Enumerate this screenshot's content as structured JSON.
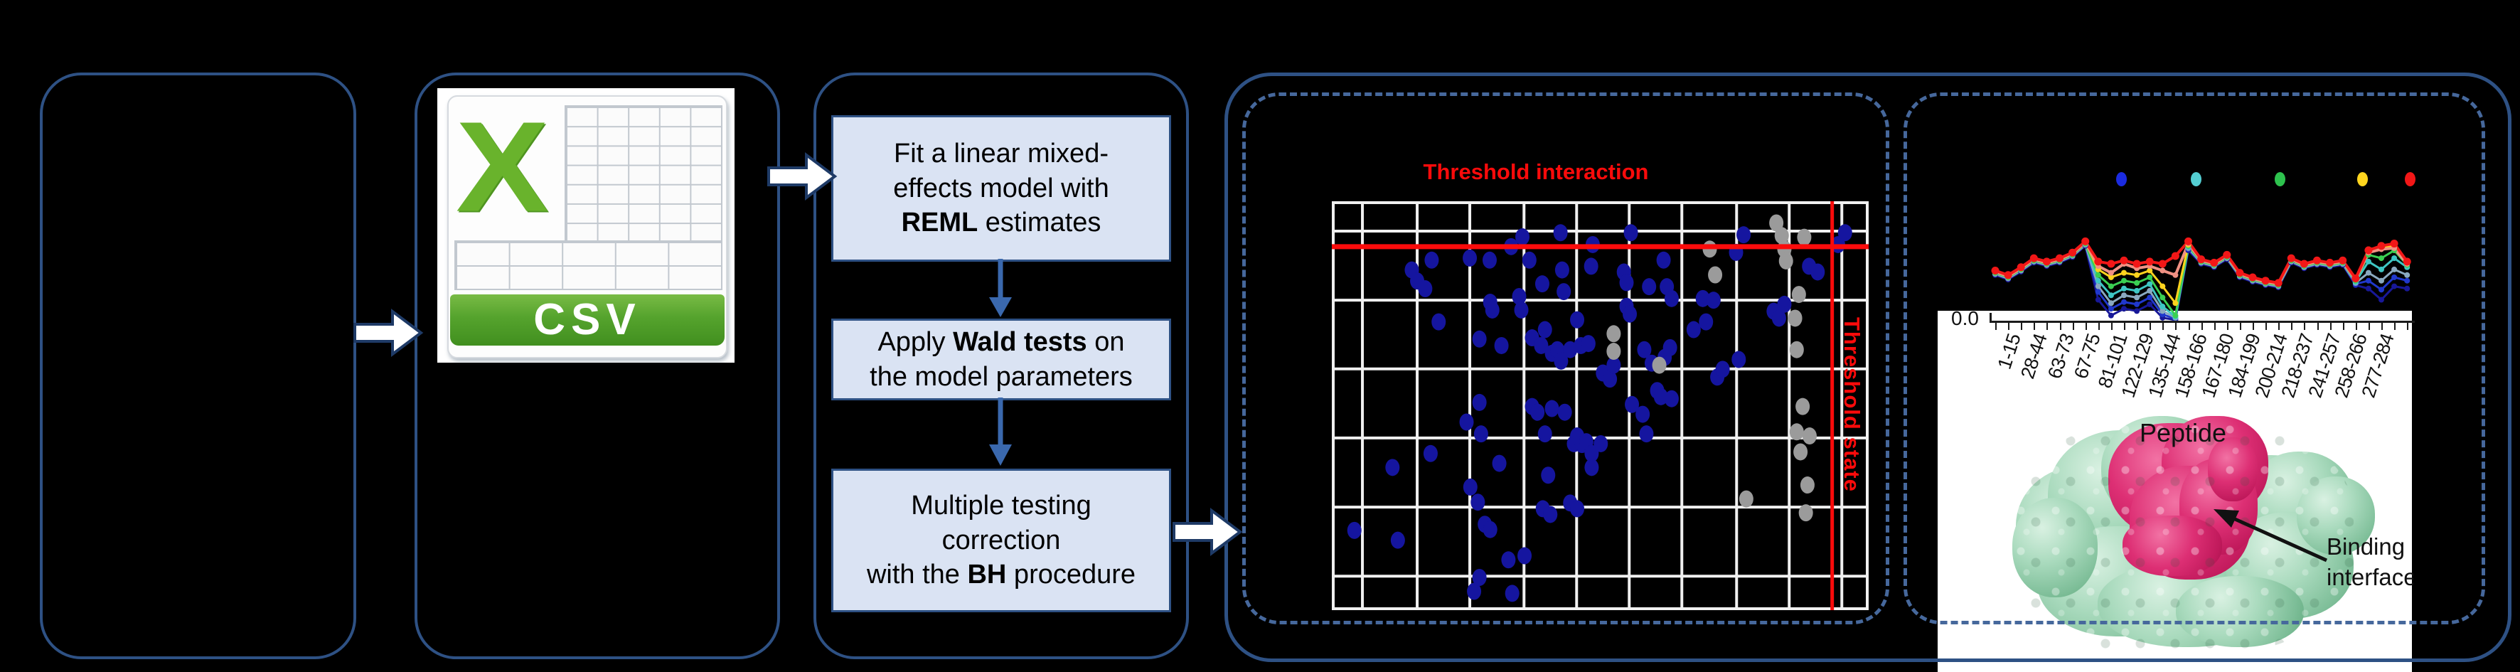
{
  "colors": {
    "background": "#000000",
    "panel_border": "#2e5184",
    "dashed_border": "#46689c",
    "flow_box_fill": "#dae3f3",
    "flow_arrow_blue": "#3a68ad",
    "threshold_red": "#fb0b0b",
    "scatter_blue": "#15159f",
    "scatter_gray": "#9b9b9b",
    "gridline_white": "#f0f0f0",
    "csv_green": "#55a32d"
  },
  "flow": {
    "boxes": [
      {
        "segments": [
          [
            "Fit a linear mixed-\neffects model with\n",
            false
          ],
          [
            "REML",
            true
          ],
          [
            " estimates",
            false
          ]
        ]
      },
      {
        "segments": [
          [
            "Apply ",
            false
          ],
          [
            "Wald tests",
            true
          ],
          [
            " on\nthe model parameters",
            false
          ]
        ]
      },
      {
        "segments": [
          [
            "Multiple testing\ncorrection\nwith the ",
            false
          ],
          [
            "BH",
            true
          ],
          [
            " procedure",
            false
          ]
        ]
      }
    ]
  },
  "csv_icon": {
    "x": "X",
    "banner": "CSV"
  },
  "protein": {
    "annotation": "Binding\ninterface"
  },
  "chart_data": [
    {
      "type": "scatter",
      "title": "Threshold interaction",
      "threshold_state_label": "Threshold state",
      "xlabel": "",
      "ylabel": "",
      "grid_on": true,
      "v_gridlines_pct": [
        5.7,
        15.9,
        25.7,
        35.8,
        45.6,
        55.4,
        65.2,
        75.4,
        85.2,
        95.0
      ],
      "h_gridlines_pct": [
        7.3,
        24.2,
        41.0,
        57.9,
        74.8,
        91.7
      ],
      "threshold_interaction_pct_y": 11.1,
      "threshold_state_pct_x": 93.2,
      "series": [
        {
          "name": "peptides-blue",
          "color": "#15159f",
          "points_pct": [
            [
              35.5,
              8.7
            ],
            [
              42.6,
              7.7
            ],
            [
              48.6,
              10.6
            ],
            [
              55.7,
              7.7
            ],
            [
              76.7,
              8.2
            ],
            [
              94.3,
              10.6
            ],
            [
              95.6,
              7.7
            ],
            [
              18.6,
              14.4
            ],
            [
              25.7,
              13.9
            ],
            [
              29.4,
              14.4
            ],
            [
              33.4,
              11.1
            ],
            [
              36.8,
              14.4
            ],
            [
              48.3,
              15.9
            ],
            [
              61.8,
              14.4
            ],
            [
              75.3,
              12.5
            ],
            [
              88.9,
              15.9
            ],
            [
              90.5,
              17.3
            ],
            [
              14.9,
              16.8
            ],
            [
              15.9,
              19.5
            ],
            [
              17.4,
              21.4
            ],
            [
              39.2,
              20.2
            ],
            [
              42.9,
              16.8
            ],
            [
              43.2,
              22.1
            ],
            [
              54.4,
              17.3
            ],
            [
              54.9,
              19.9
            ],
            [
              59.1,
              20.9
            ],
            [
              62.4,
              20.9
            ],
            [
              63.3,
              23.8
            ],
            [
              69.1,
              23.8
            ],
            [
              71.1,
              24.2
            ],
            [
              82.3,
              26.9
            ],
            [
              83.3,
              28.6
            ],
            [
              84.3,
              25.2
            ],
            [
              19.9,
              29.5
            ],
            [
              27.5,
              33.7
            ],
            [
              29.5,
              24.7
            ],
            [
              29.9,
              26.6
            ],
            [
              31.6,
              35.3
            ],
            [
              34.9,
              23.3
            ],
            [
              35.3,
              26.6
            ],
            [
              37.3,
              33.4
            ],
            [
              39.0,
              35.3
            ],
            [
              39.7,
              31.4
            ],
            [
              41.0,
              37.2
            ],
            [
              42.0,
              36.3
            ],
            [
              42.7,
              39.1
            ],
            [
              44.4,
              36.3
            ],
            [
              45.7,
              29.0
            ],
            [
              46.4,
              35.3
            ],
            [
              47.8,
              34.8
            ],
            [
              50.5,
              42.0
            ],
            [
              51.8,
              43.5
            ],
            [
              52.5,
              40.1
            ],
            [
              54.9,
              25.7
            ],
            [
              55.5,
              27.6
            ],
            [
              58.2,
              36.3
            ],
            [
              59.6,
              39.6
            ],
            [
              62.0,
              38.2
            ],
            [
              63.0,
              35.8
            ],
            [
              67.4,
              31.4
            ],
            [
              69.7,
              29.5
            ],
            [
              71.8,
              43.0
            ],
            [
              72.8,
              41.1
            ],
            [
              75.8,
              38.7
            ],
            [
              25.1,
              54.0
            ],
            [
              27.5,
              49.2
            ],
            [
              27.8,
              56.9
            ],
            [
              37.3,
              50.2
            ],
            [
              38.3,
              51.6
            ],
            [
              39.7,
              56.9
            ],
            [
              41.0,
              50.7
            ],
            [
              43.4,
              51.6
            ],
            [
              45.1,
              59.3
            ],
            [
              45.7,
              57.4
            ],
            [
              46.6,
              59.5
            ],
            [
              47.4,
              58.8
            ],
            [
              48.4,
              61.7
            ],
            [
              50.1,
              59.3
            ],
            [
              55.9,
              49.7
            ],
            [
              57.9,
              52.1
            ],
            [
              58.6,
              56.9
            ],
            [
              60.6,
              46.3
            ],
            [
              61.3,
              47.8
            ],
            [
              63.3,
              48.3
            ],
            [
              11.3,
              65.1
            ],
            [
              18.4,
              61.7
            ],
            [
              31.2,
              64.1
            ],
            [
              40.3,
              67.0
            ],
            [
              48.4,
              65.1
            ],
            [
              39.3,
              75.2
            ],
            [
              40.7,
              76.6
            ],
            [
              44.4,
              73.8
            ],
            [
              45.7,
              75.2
            ],
            [
              4.2,
              80.5
            ],
            [
              12.3,
              82.9
            ],
            [
              28.5,
              79.0
            ],
            [
              32.9,
              87.7
            ],
            [
              35.9,
              86.7
            ],
            [
              33.6,
              95.9
            ],
            [
              26.5,
              95.4
            ],
            [
              27.5,
              92.0
            ],
            [
              25.8,
              69.9
            ],
            [
              27.2,
              73.6
            ],
            [
              29.5,
              80.3
            ]
          ]
        },
        {
          "name": "peptides-gray",
          "color": "#9b9b9b",
          "points_pct": [
            [
              82.8,
              5.3
            ],
            [
              83.8,
              8.4
            ],
            [
              84.3,
              11.7
            ],
            [
              88.0,
              8.8
            ],
            [
              70.4,
              11.7
            ],
            [
              71.4,
              18.0
            ],
            [
              84.6,
              14.6
            ],
            [
              87.0,
              22.8
            ],
            [
              86.3,
              28.6
            ],
            [
              52.5,
              32.4
            ],
            [
              52.5,
              36.7
            ],
            [
              61.0,
              40.1
            ],
            [
              86.6,
              36.3
            ],
            [
              87.7,
              50.2
            ],
            [
              86.6,
              56.4
            ],
            [
              89.0,
              57.4
            ],
            [
              87.3,
              61.3
            ],
            [
              88.6,
              69.4
            ],
            [
              88.3,
              76.2
            ],
            [
              77.2,
              72.8
            ]
          ]
        }
      ]
    },
    {
      "type": "line",
      "xlabel": "Peptide",
      "y_tick_label": "0.0",
      "x_tick_count": 33,
      "categories_shown": [
        "1-15",
        "28-44",
        "63-73",
        "67-75",
        "81-101",
        "122-129",
        "135-144",
        "158-166",
        "167-180",
        "184-199",
        "200-214",
        "218-237",
        "241-257",
        "258-266",
        "277-284"
      ],
      "legend_dot_colors": [
        "#1b2be0",
        "#54ced2",
        "#2ec24e",
        "#ffd51e",
        "#f21717"
      ],
      "ylim": [
        0,
        1
      ],
      "series": [
        {
          "name": "navy",
          "color": "#181898",
          "values": [
            0.4,
            0.36,
            0.43,
            0.51,
            0.48,
            0.51,
            0.56,
            0.66,
            0.18,
            0.04,
            0.1,
            0.08,
            0.14,
            0.02,
            0.0,
            0.62,
            0.5,
            0.47,
            0.54,
            0.38,
            0.34,
            0.31,
            0.29,
            0.51,
            0.46,
            0.49,
            0.47,
            0.49,
            0.31,
            0.28,
            0.18,
            0.3,
            0.28
          ]
        },
        {
          "name": "blue",
          "color": "#2038cc",
          "values": [
            0.41,
            0.37,
            0.44,
            0.52,
            0.49,
            0.52,
            0.57,
            0.67,
            0.25,
            0.1,
            0.16,
            0.14,
            0.2,
            0.05,
            0.01,
            0.63,
            0.51,
            0.48,
            0.55,
            0.39,
            0.35,
            0.32,
            0.3,
            0.52,
            0.47,
            0.5,
            0.48,
            0.5,
            0.32,
            0.35,
            0.27,
            0.38,
            0.35
          ]
        },
        {
          "name": "slate",
          "color": "#8aa9c0",
          "values": [
            0.41,
            0.37,
            0.44,
            0.52,
            0.49,
            0.52,
            0.57,
            0.67,
            0.3,
            0.15,
            0.22,
            0.2,
            0.26,
            0.08,
            0.02,
            0.64,
            0.51,
            0.48,
            0.55,
            0.39,
            0.35,
            0.32,
            0.3,
            0.52,
            0.47,
            0.5,
            0.48,
            0.5,
            0.33,
            0.42,
            0.35,
            0.45,
            0.4
          ]
        },
        {
          "name": "teal",
          "color": "#3ec6c4",
          "values": [
            0.42,
            0.38,
            0.45,
            0.53,
            0.5,
            0.53,
            0.58,
            0.68,
            0.35,
            0.22,
            0.28,
            0.26,
            0.32,
            0.12,
            0.03,
            0.65,
            0.52,
            0.49,
            0.56,
            0.4,
            0.36,
            0.33,
            0.31,
            0.53,
            0.48,
            0.51,
            0.49,
            0.51,
            0.34,
            0.52,
            0.45,
            0.55,
            0.47
          ]
        },
        {
          "name": "green",
          "color": "#3bcf52",
          "values": [
            0.42,
            0.38,
            0.45,
            0.53,
            0.5,
            0.53,
            0.58,
            0.68,
            0.4,
            0.3,
            0.35,
            0.33,
            0.38,
            0.2,
            0.04,
            0.66,
            0.52,
            0.49,
            0.56,
            0.4,
            0.36,
            0.33,
            0.31,
            0.53,
            0.48,
            0.51,
            0.49,
            0.51,
            0.35,
            0.58,
            0.55,
            0.62,
            0.49
          ]
        },
        {
          "name": "yellow",
          "color": "#ffd31e",
          "values": [
            0.43,
            0.39,
            0.46,
            0.54,
            0.51,
            0.54,
            0.59,
            0.69,
            0.45,
            0.38,
            0.42,
            0.4,
            0.44,
            0.3,
            0.15,
            0.67,
            0.53,
            0.5,
            0.57,
            0.41,
            0.37,
            0.34,
            0.32,
            0.54,
            0.49,
            0.52,
            0.5,
            0.52,
            0.36,
            0.63,
            0.65,
            0.66,
            0.51
          ]
        },
        {
          "name": "salmon",
          "color": "#f09183",
          "values": [
            0.43,
            0.39,
            0.46,
            0.54,
            0.51,
            0.54,
            0.59,
            0.69,
            0.48,
            0.42,
            0.5,
            0.46,
            0.48,
            0.44,
            0.4,
            0.68,
            0.53,
            0.5,
            0.57,
            0.41,
            0.37,
            0.34,
            0.32,
            0.54,
            0.49,
            0.52,
            0.5,
            0.52,
            0.36,
            0.6,
            0.63,
            0.64,
            0.5
          ]
        },
        {
          "name": "red",
          "color": "#f21717",
          "values": [
            0.44,
            0.4,
            0.47,
            0.55,
            0.52,
            0.55,
            0.6,
            0.7,
            0.52,
            0.5,
            0.53,
            0.5,
            0.52,
            0.5,
            0.57,
            0.7,
            0.54,
            0.51,
            0.58,
            0.42,
            0.38,
            0.35,
            0.33,
            0.55,
            0.5,
            0.53,
            0.51,
            0.53,
            0.37,
            0.62,
            0.66,
            0.68,
            0.52
          ]
        }
      ]
    }
  ]
}
